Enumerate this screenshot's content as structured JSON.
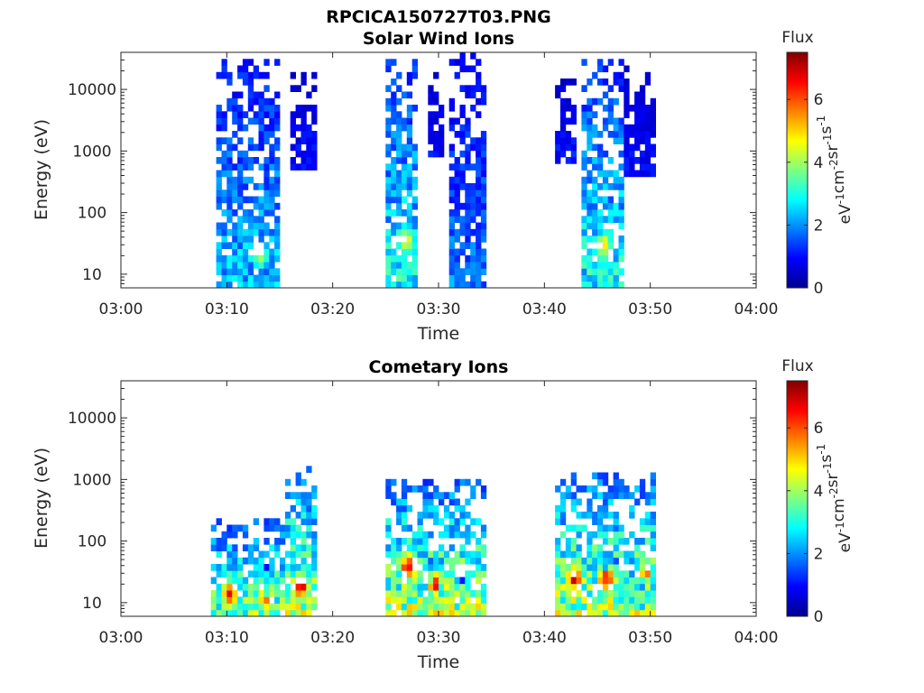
{
  "figure_title": "RPCICA150727T03.PNG",
  "colors": {
    "colormap": [
      "#00008f",
      "#0000ff",
      "#0080ff",
      "#00ffff",
      "#80ff80",
      "#ffff00",
      "#ff8000",
      "#ff0000",
      "#800000"
    ]
  },
  "chart_data": [
    {
      "type": "heatmap",
      "title": "Solar Wind Ions",
      "xlabel": "Time",
      "ylabel": "Energy (eV)",
      "x_ticks": [
        "03:00",
        "03:10",
        "03:20",
        "03:30",
        "03:40",
        "03:50",
        "04:00"
      ],
      "x_range_minutes": [
        0,
        60
      ],
      "y_scale": "log",
      "ylim": [
        6,
        40000
      ],
      "y_ticks": [
        {
          "value": 10,
          "label": "10"
        },
        {
          "value": 100,
          "label": "100"
        },
        {
          "value": 1000,
          "label": "1000"
        },
        {
          "value": 10000,
          "label": "10000"
        }
      ],
      "colorbar": {
        "title": "Flux",
        "label": "eV-1cm-2sr-1s-1",
        "range": [
          0,
          7.5
        ],
        "ticks": [
          {
            "value": 0,
            "label": "0"
          },
          {
            "value": 2,
            "label": "2"
          },
          {
            "value": 4,
            "label": "4"
          },
          {
            "value": 6,
            "label": "6"
          }
        ]
      },
      "bursts": [
        {
          "t_start": 8.9,
          "t_end": 15.1,
          "e_min": 6,
          "e_max": 35000,
          "peak_flux": 4.4,
          "peak_time": 13.2,
          "peak_energy": 20
        },
        {
          "t_start": 15.8,
          "t_end": 18.3,
          "e_min": 450,
          "e_max": 20000,
          "peak_flux": 2.0
        },
        {
          "t_start": 24.8,
          "t_end": 27.8,
          "e_min": 6,
          "e_max": 35000,
          "peak_flux": 5.2,
          "peak_time": 27.0,
          "peak_energy": 35
        },
        {
          "t_start": 29.0,
          "t_end": 30.5,
          "e_min": 800,
          "e_max": 18000,
          "peak_flux": 1.8
        },
        {
          "t_start": 30.8,
          "t_end": 34.6,
          "e_min": 6,
          "e_max": 40000,
          "peak_flux": 3.4
        },
        {
          "t_start": 40.8,
          "t_end": 43.0,
          "e_min": 600,
          "e_max": 15000,
          "peak_flux": 2.0
        },
        {
          "t_start": 43.7,
          "t_end": 47.6,
          "e_min": 6,
          "e_max": 30000,
          "peak_flux": 5.2,
          "peak_time": 45.6,
          "peak_energy": 30
        },
        {
          "t_start": 47.6,
          "t_end": 50.6,
          "e_min": 400,
          "e_max": 25000,
          "peak_flux": 1.8
        }
      ]
    },
    {
      "type": "heatmap",
      "title": "Cometary Ions",
      "xlabel": "Time",
      "ylabel": "Energy (eV)",
      "x_ticks": [
        "03:00",
        "03:10",
        "03:20",
        "03:30",
        "03:40",
        "03:50",
        "04:00"
      ],
      "x_range_minutes": [
        0,
        60
      ],
      "y_scale": "log",
      "ylim": [
        6,
        40000
      ],
      "y_ticks": [
        {
          "value": 10,
          "label": "10"
        },
        {
          "value": 100,
          "label": "100"
        },
        {
          "value": 1000,
          "label": "1000"
        },
        {
          "value": 10000,
          "label": "10000"
        }
      ],
      "colorbar": {
        "title": "Flux",
        "label": "eV-1cm-2sr-1s-1",
        "range": [
          0,
          7.5
        ],
        "ticks": [
          {
            "value": 0,
            "label": "0"
          },
          {
            "value": 2,
            "label": "2"
          },
          {
            "value": 4,
            "label": "4"
          },
          {
            "value": 6,
            "label": "6"
          }
        ]
      },
      "bursts": [
        {
          "t_start": 8.6,
          "t_end": 15.3,
          "e_min": 6,
          "e_max": 220,
          "peak_flux": 6.8,
          "peak_time": 10.3,
          "peak_energy": 14
        },
        {
          "t_start": 12.8,
          "t_end": 14.6,
          "e_min": 6,
          "e_max": 40,
          "peak_flux": 6.2,
          "peak_time": 13.7,
          "peak_energy": 12
        },
        {
          "t_start": 15.4,
          "t_end": 18.3,
          "e_min": 6,
          "e_max": 1500,
          "peak_flux": 7.4,
          "peak_time": 16.9,
          "peak_energy": 18
        },
        {
          "t_start": 24.8,
          "t_end": 34.5,
          "e_min": 6,
          "e_max": 1000,
          "peak_flux": 7.4,
          "peak_time": 27.2,
          "peak_energy": 40
        },
        {
          "t_start": 28.8,
          "t_end": 31.0,
          "e_min": 6,
          "e_max": 60,
          "peak_flux": 7.2,
          "peak_time": 29.7,
          "peak_energy": 20
        },
        {
          "t_start": 32.0,
          "t_end": 33.0,
          "e_min": 6,
          "e_max": 30,
          "peak_flux": 5.4,
          "peak_time": 32.6,
          "peak_energy": 10
        },
        {
          "t_start": 40.8,
          "t_end": 50.6,
          "e_min": 6,
          "e_max": 1200,
          "peak_flux": 7.4,
          "peak_time": 42.8,
          "peak_energy": 25
        },
        {
          "t_start": 44.8,
          "t_end": 46.8,
          "e_min": 6,
          "e_max": 60,
          "peak_flux": 7.2,
          "peak_time": 45.8,
          "peak_energy": 25
        },
        {
          "t_start": 48.2,
          "t_end": 50.5,
          "e_min": 6,
          "e_max": 60,
          "peak_flux": 7.0,
          "peak_time": 49.8,
          "peak_energy": 35
        }
      ]
    }
  ]
}
